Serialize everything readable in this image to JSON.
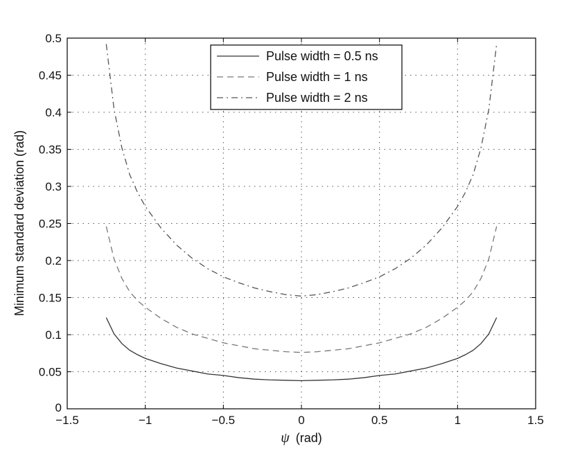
{
  "chart_data": {
    "type": "line",
    "xlabel_symbol": "ψ",
    "xlabel_unit": "(rad)",
    "ylabel": "Minimum standard deviation (rad)",
    "xlim": [
      -1.5,
      1.5
    ],
    "ylim": [
      0,
      0.5
    ],
    "xticks": [
      -1.5,
      -1,
      -0.5,
      0,
      0.5,
      1,
      1.5
    ],
    "xtick_labels": [
      "−1.5",
      "−1",
      "−0.5",
      "0",
      "0.5",
      "1",
      "1.5"
    ],
    "yticks": [
      0,
      0.05,
      0.1,
      0.15,
      0.2,
      0.25,
      0.3,
      0.35,
      0.4,
      0.45,
      0.5
    ],
    "ytick_labels": [
      "0",
      "0.05",
      "0.1",
      "0.15",
      "0.2",
      "0.25",
      "0.3",
      "0.35",
      "0.4",
      "0.45",
      "0.5"
    ],
    "grid": true,
    "legend_position": "top-center",
    "x": [
      -1.25,
      -1.2,
      -1.15,
      -1.1,
      -1.05,
      -1.0,
      -0.9,
      -0.8,
      -0.7,
      -0.6,
      -0.5,
      -0.4,
      -0.3,
      -0.2,
      -0.1,
      0.0,
      0.1,
      0.2,
      0.3,
      0.4,
      0.5,
      0.6,
      0.7,
      0.8,
      0.9,
      1.0,
      1.05,
      1.1,
      1.15,
      1.2,
      1.25
    ],
    "series": [
      {
        "name": "Pulse width = 0.5 ns",
        "dash": "solid",
        "color": "#333333",
        "values": [
          0.123,
          0.101,
          0.088,
          0.079,
          0.073,
          0.068,
          0.061,
          0.055,
          0.051,
          0.047,
          0.045,
          0.042,
          0.04,
          0.039,
          0.0385,
          0.038,
          0.0385,
          0.039,
          0.04,
          0.042,
          0.045,
          0.047,
          0.051,
          0.055,
          0.061,
          0.068,
          0.073,
          0.079,
          0.088,
          0.101,
          0.123
        ]
      },
      {
        "name": "Pulse width = 1 ns",
        "dash": "dashed",
        "color": "#777777",
        "values": [
          0.246,
          0.202,
          0.176,
          0.158,
          0.146,
          0.137,
          0.122,
          0.11,
          0.101,
          0.095,
          0.089,
          0.085,
          0.081,
          0.079,
          0.077,
          0.076,
          0.077,
          0.079,
          0.081,
          0.085,
          0.089,
          0.095,
          0.101,
          0.11,
          0.122,
          0.137,
          0.146,
          0.158,
          0.176,
          0.202,
          0.246
        ]
      },
      {
        "name": "Pulse width = 2 ns",
        "dash": "dashdot",
        "color": "#555555",
        "values": [
          0.492,
          0.404,
          0.352,
          0.316,
          0.292,
          0.273,
          0.244,
          0.221,
          0.203,
          0.189,
          0.178,
          0.17,
          0.163,
          0.158,
          0.154,
          0.152,
          0.154,
          0.158,
          0.163,
          0.17,
          0.178,
          0.189,
          0.203,
          0.221,
          0.244,
          0.273,
          0.292,
          0.316,
          0.352,
          0.404,
          0.492
        ]
      }
    ]
  }
}
